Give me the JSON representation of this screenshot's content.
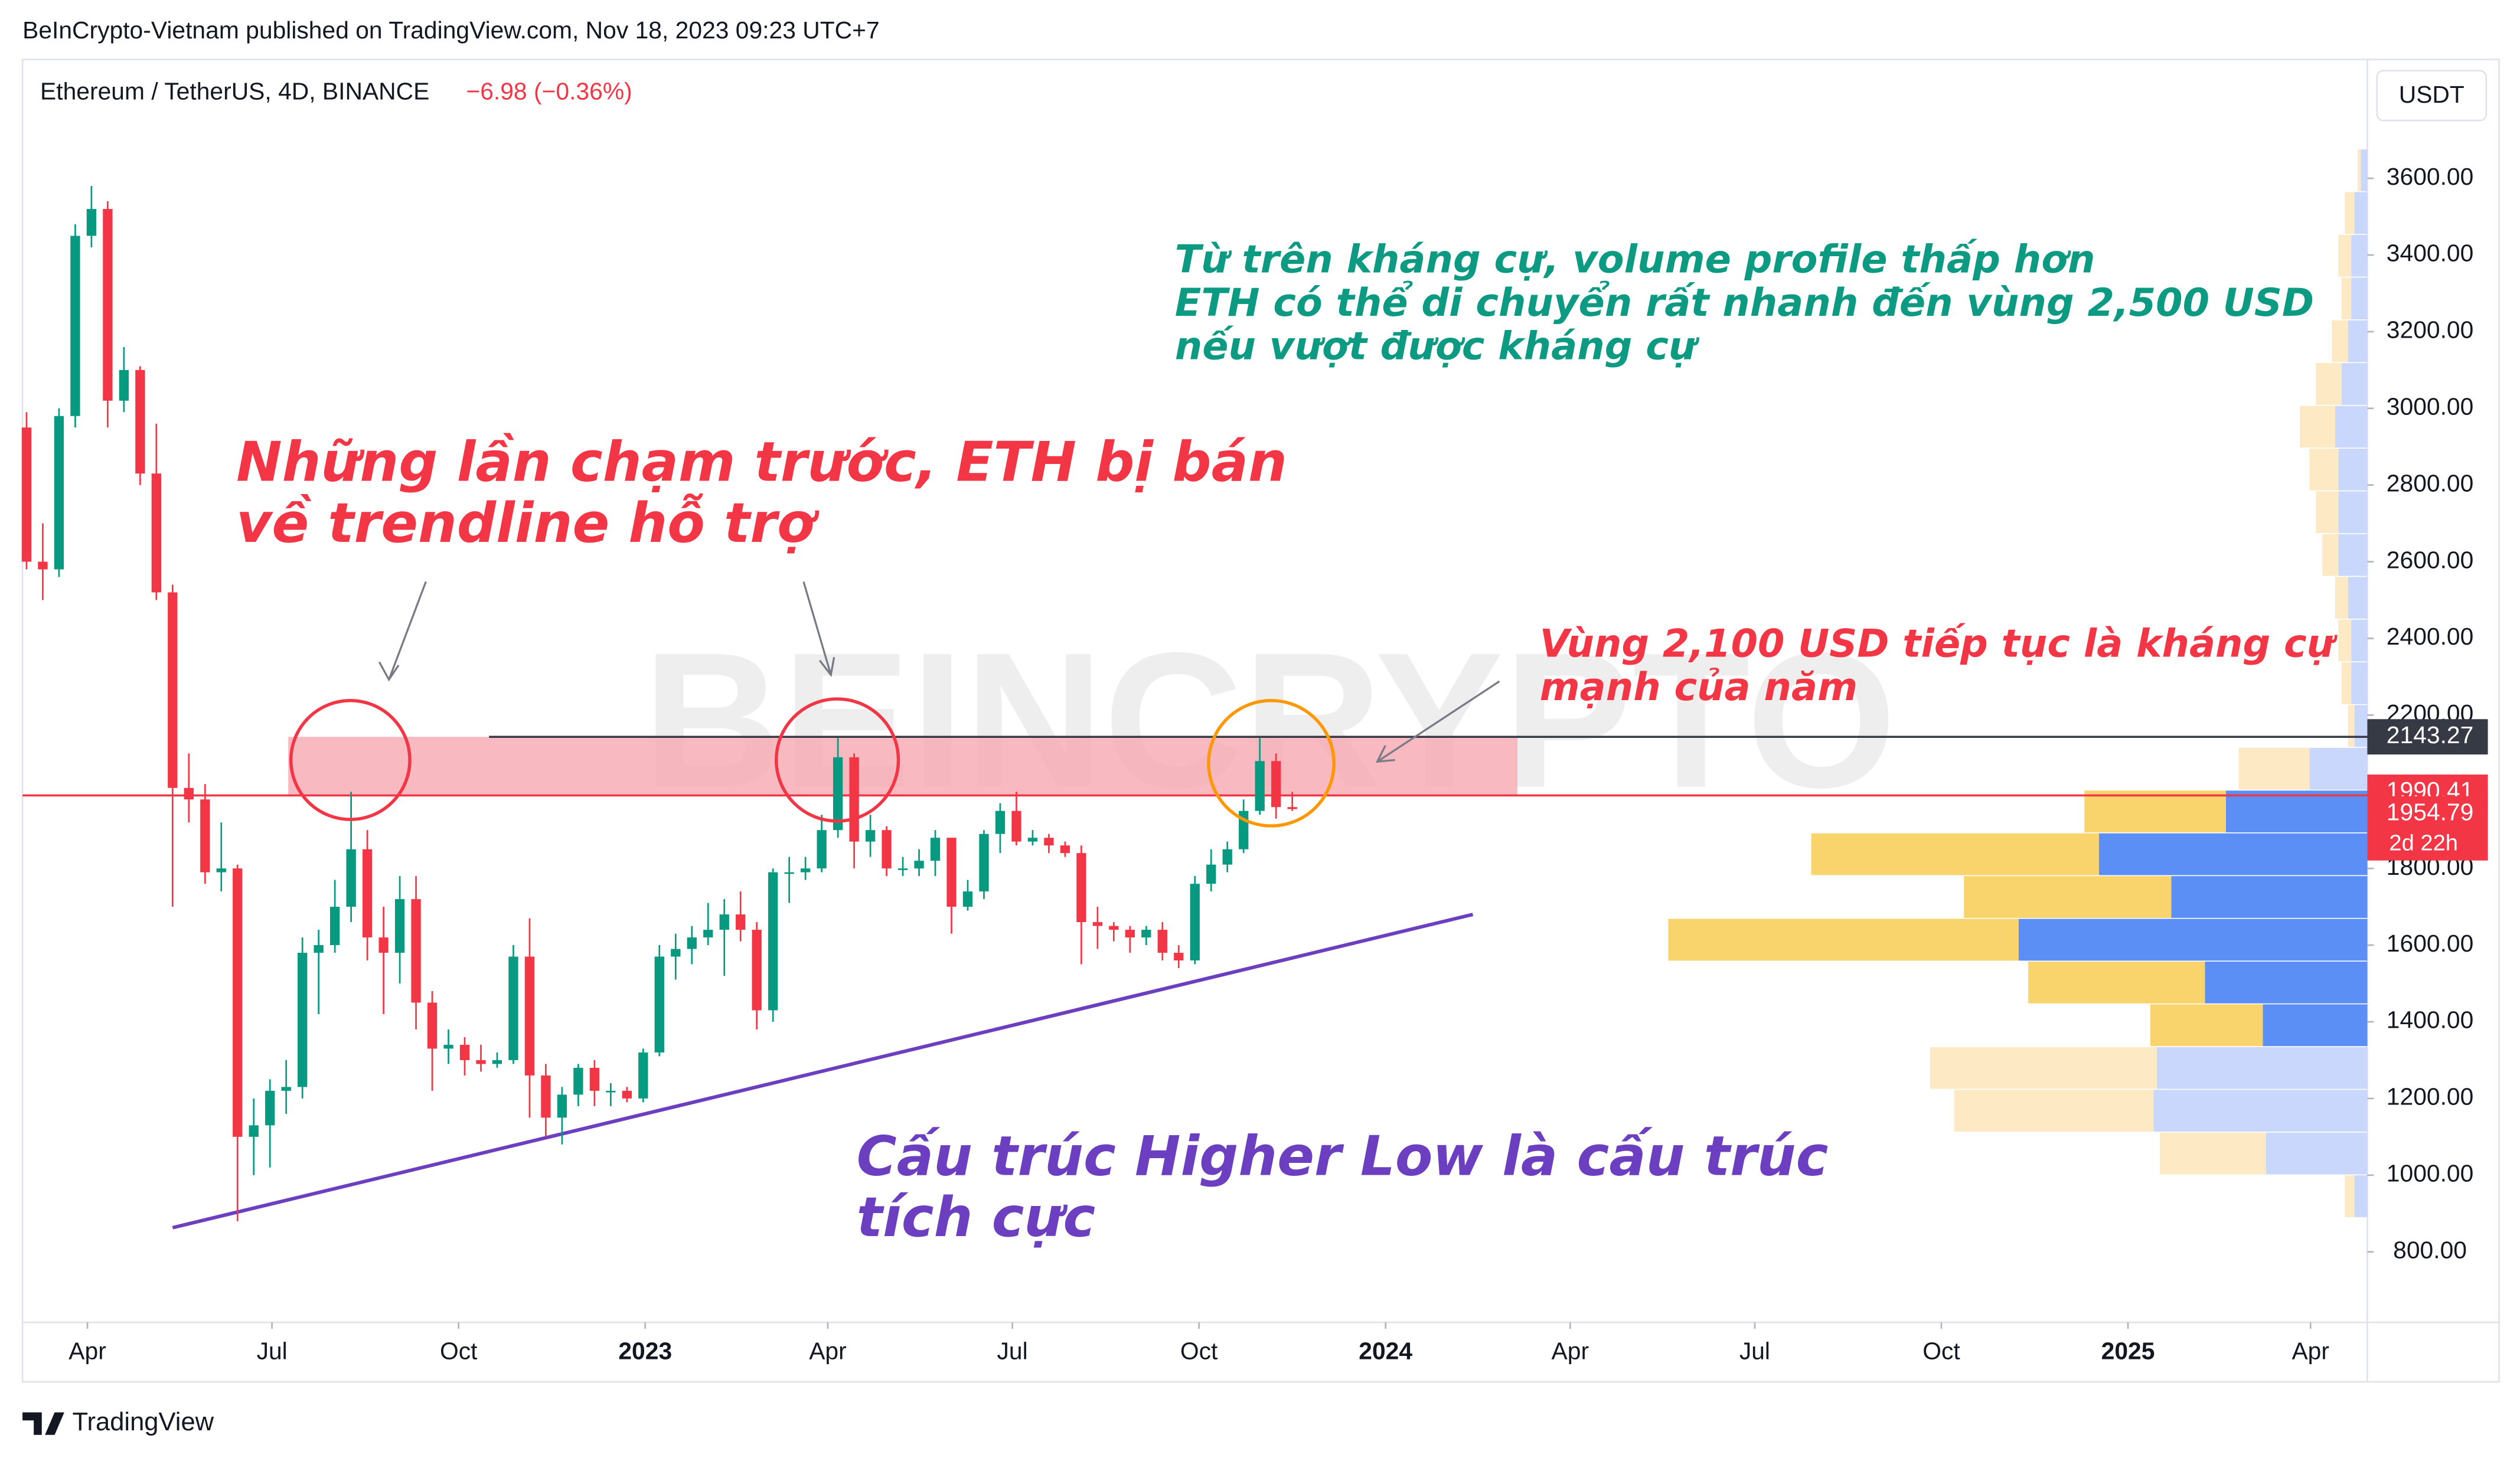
{
  "header": {
    "published": "BeInCrypto-Vietnam published on TradingView.com, Nov 18, 2023 09:23 UTC+7",
    "symbol": "Ethereum / TetherUS, 4D, BINANCE",
    "change": "−6.98 (−0.36%)",
    "currency": "USDT",
    "footer": "TradingView"
  },
  "chart_data": {
    "type": "candlestick",
    "watermark": "BEINCRYPTO",
    "up_color": "#089981",
    "down_color": "#f23645",
    "grid": false,
    "xlim": [
      "2022-02-28",
      "2025-04-29"
    ],
    "ylim": [
      616,
      3910
    ],
    "xticks": [
      {
        "value": "2022-04-01",
        "label": "Apr"
      },
      {
        "value": "2022-07-01",
        "label": "Jul"
      },
      {
        "value": "2022-10-01",
        "label": "Oct"
      },
      {
        "value": "2023-01-01",
        "label": "2023"
      },
      {
        "value": "2023-04-01",
        "label": "Apr"
      },
      {
        "value": "2023-07-01",
        "label": "Jul"
      },
      {
        "value": "2023-10-01",
        "label": "Oct"
      },
      {
        "value": "2024-01-01",
        "label": "2024"
      },
      {
        "value": "2024-04-01",
        "label": "Apr"
      },
      {
        "value": "2024-07-01",
        "label": "Jul"
      },
      {
        "value": "2024-10-01",
        "label": "Oct"
      },
      {
        "value": "2025-01-01",
        "label": "2025"
      },
      {
        "value": "2025-04-01",
        "label": "Apr"
      }
    ],
    "yticks": [
      {
        "value": 800,
        "label": "800.00"
      },
      {
        "value": 1000,
        "label": "1000.00"
      },
      {
        "value": 1200,
        "label": "1200.00"
      },
      {
        "value": 1400,
        "label": "1400.00"
      },
      {
        "value": 1600,
        "label": "1600.00"
      },
      {
        "value": 1800,
        "label": "1800.00"
      },
      {
        "value": 2000,
        "label": "2000.00"
      },
      {
        "value": 2200,
        "label": "2200.00"
      },
      {
        "value": 2400,
        "label": "2400.00"
      },
      {
        "value": 2600,
        "label": "2600.00"
      },
      {
        "value": 2800,
        "label": "2800.00"
      },
      {
        "value": 3000,
        "label": "3000.00"
      },
      {
        "value": 3200,
        "label": "3200.00"
      },
      {
        "value": 3400,
        "label": "3400.00"
      },
      {
        "value": 3600,
        "label": "3600.00"
      }
    ],
    "x": [
      "2022-03-02",
      "2022-03-10",
      "2022-03-18",
      "2022-03-26",
      "2022-04-03",
      "2022-04-11",
      "2022-04-19",
      "2022-04-27",
      "2022-05-05",
      "2022-05-13",
      "2022-05-21",
      "2022-05-29",
      "2022-06-06",
      "2022-06-14",
      "2022-06-22",
      "2022-06-30",
      "2022-07-08",
      "2022-07-16",
      "2022-07-24",
      "2022-08-01",
      "2022-08-09",
      "2022-08-17",
      "2022-08-25",
      "2022-09-02",
      "2022-09-10",
      "2022-09-18",
      "2022-09-26",
      "2022-10-04",
      "2022-10-12",
      "2022-10-20",
      "2022-10-28",
      "2022-11-05",
      "2022-11-13",
      "2022-11-21",
      "2022-11-29",
      "2022-12-07",
      "2022-12-15",
      "2022-12-23",
      "2022-12-31",
      "2023-01-08",
      "2023-01-16",
      "2023-01-24",
      "2023-02-01",
      "2023-02-09",
      "2023-02-17",
      "2023-02-25",
      "2023-03-05",
      "2023-03-13",
      "2023-03-21",
      "2023-03-29",
      "2023-04-06",
      "2023-04-14",
      "2023-04-22",
      "2023-04-30",
      "2023-05-08",
      "2023-05-16",
      "2023-05-24",
      "2023-06-01",
      "2023-06-09",
      "2023-06-17",
      "2023-06-25",
      "2023-07-03",
      "2023-07-11",
      "2023-07-19",
      "2023-07-27",
      "2023-08-04",
      "2023-08-12",
      "2023-08-20",
      "2023-08-28",
      "2023-09-05",
      "2023-09-13",
      "2023-09-21",
      "2023-09-29",
      "2023-10-07",
      "2023-10-15",
      "2023-10-23",
      "2023-10-31",
      "2023-11-08",
      "2023-11-16"
    ],
    "open": [
      2950,
      2600,
      2580,
      2980,
      3450,
      3520,
      3020,
      3100,
      2830,
      2520,
      2010,
      1980,
      1790,
      1800,
      1100,
      1130,
      1220,
      1230,
      1580,
      1600,
      1700,
      1850,
      1620,
      1580,
      1720,
      1450,
      1330,
      1340,
      1300,
      1290,
      1300,
      1570,
      1260,
      1150,
      1210,
      1280,
      1220,
      1220,
      1200,
      1320,
      1570,
      1590,
      1620,
      1640,
      1680,
      1640,
      1430,
      1790,
      1790,
      1800,
      1900,
      2090,
      1870,
      1900,
      1800,
      1800,
      1820,
      1880,
      1700,
      1740,
      1890,
      1950,
      1870,
      1880,
      1860,
      1840,
      1660,
      1650,
      1640,
      1620,
      1640,
      1580,
      1560,
      1760,
      1810,
      1850,
      1950,
      2080,
      1960
    ],
    "high": [
      2990,
      2700,
      3000,
      3480,
      3580,
      3540,
      3160,
      3110,
      2960,
      2540,
      2100,
      2020,
      1920,
      1810,
      1200,
      1250,
      1300,
      1620,
      1640,
      1770,
      2000,
      1900,
      1700,
      1780,
      1780,
      1480,
      1380,
      1360,
      1340,
      1320,
      1600,
      1670,
      1290,
      1230,
      1290,
      1300,
      1240,
      1230,
      1330,
      1600,
      1630,
      1650,
      1710,
      1720,
      1740,
      1660,
      1800,
      1830,
      1830,
      1940,
      2140,
      2100,
      1940,
      1910,
      1830,
      1850,
      1900,
      1880,
      1770,
      1900,
      1970,
      2000,
      1900,
      1890,
      1870,
      1860,
      1700,
      1660,
      1650,
      1650,
      1660,
      1600,
      1780,
      1850,
      1870,
      1980,
      2140,
      2100,
      2000
    ],
    "low": [
      2580,
      2500,
      2560,
      2950,
      3420,
      2950,
      2990,
      2800,
      2500,
      1700,
      1920,
      1760,
      1740,
      880,
      1000,
      1020,
      1160,
      1200,
      1420,
      1580,
      1660,
      1560,
      1420,
      1500,
      1380,
      1220,
      1290,
      1260,
      1270,
      1280,
      1290,
      1150,
      1100,
      1080,
      1180,
      1180,
      1180,
      1190,
      1190,
      1310,
      1510,
      1550,
      1600,
      1520,
      1610,
      1380,
      1400,
      1710,
      1770,
      1790,
      1880,
      1800,
      1830,
      1780,
      1780,
      1780,
      1780,
      1630,
      1690,
      1720,
      1840,
      1860,
      1860,
      1840,
      1830,
      1550,
      1590,
      1610,
      1580,
      1600,
      1560,
      1540,
      1550,
      1740,
      1790,
      1840,
      1940,
      1930,
      1950
    ],
    "close": [
      2600,
      2580,
      2980,
      3450,
      3520,
      3020,
      3100,
      2830,
      2520,
      2010,
      1980,
      1790,
      1800,
      1100,
      1130,
      1220,
      1230,
      1580,
      1600,
      1700,
      1850,
      1620,
      1580,
      1720,
      1450,
      1330,
      1340,
      1300,
      1290,
      1300,
      1570,
      1260,
      1150,
      1210,
      1280,
      1220,
      1220,
      1200,
      1320,
      1570,
      1590,
      1620,
      1640,
      1680,
      1640,
      1430,
      1790,
      1790,
      1800,
      1900,
      2090,
      1870,
      1900,
      1800,
      1800,
      1820,
      1880,
      1700,
      1740,
      1890,
      1950,
      1870,
      1880,
      1860,
      1840,
      1660,
      1650,
      1640,
      1620,
      1640,
      1580,
      1560,
      1760,
      1810,
      1850,
      1950,
      2080,
      1960,
      1954.79
    ],
    "countdown": "2d 22h",
    "levels": [
      {
        "value": 2143.27,
        "color": "#363a45",
        "start": "2022-10-16"
      },
      {
        "value": 1990.41,
        "color": "#f23645"
      }
    ],
    "zone": {
      "x": [
        "2022-07-09",
        "2024-03-06"
      ],
      "color": "#f7a8b0"
    },
    "trendline": {
      "x": [
        "2022-05-13",
        "2024-02-13"
      ],
      "y": [
        863,
        1680
      ],
      "color": "#6b3fc0"
    },
    "volume_profile": {
      "bins": [
        888,
        999.5,
        1111,
        1222.5,
        1334,
        1445.5,
        1557,
        1668.5,
        1780,
        1891.5,
        2003,
        2114.5,
        2226,
        2337.5,
        2449,
        2560.5,
        2672,
        2783.5,
        2895,
        3006.5,
        3118,
        3229.5,
        3341,
        3452.5,
        3564,
        3675.5
      ],
      "up": [
        6,
        66,
        124,
        141,
        70,
        110,
        218,
        129,
        179,
        88,
        44,
        4,
        6,
        8,
        8,
        10,
        14,
        18,
        22,
        16,
        10,
        6,
        8,
        6,
        2
      ],
      "down": [
        8,
        63,
        133,
        131,
        65,
        101,
        217,
        122,
        167,
        88,
        36,
        8,
        10,
        10,
        12,
        18,
        18,
        18,
        20,
        16,
        12,
        10,
        10,
        8,
        4
      ],
      "value_area": [
        1334,
        2003
      ],
      "up_color": "#f9d36c",
      "down_color": "#5b8ff5",
      "up_faded": "#fde9c3",
      "down_faded": "#c8d7fb"
    },
    "annotations": [
      {
        "lines": [
          "Những lần chạm trước, ETH bị bán",
          "về trendline hỗ trợ"
        ],
        "color": "#f23645"
      },
      {
        "lines": [
          "Từ trên kháng cự, volume profile thấp hơn",
          "ETH có thể di chuyển rất nhanh đến vùng 2,500 USD",
          "nếu vượt được kháng cự"
        ],
        "color": "#0c9a83"
      },
      {
        "lines": [
          "Vùng 2,100 USD tiếp tục là kháng cự",
          "mạnh của năm"
        ],
        "color": "#f23645"
      },
      {
        "lines": [
          "Cấu trúc Higher Low là cấu trúc",
          "tích cực"
        ],
        "color": "#6b3fc0"
      }
    ]
  }
}
